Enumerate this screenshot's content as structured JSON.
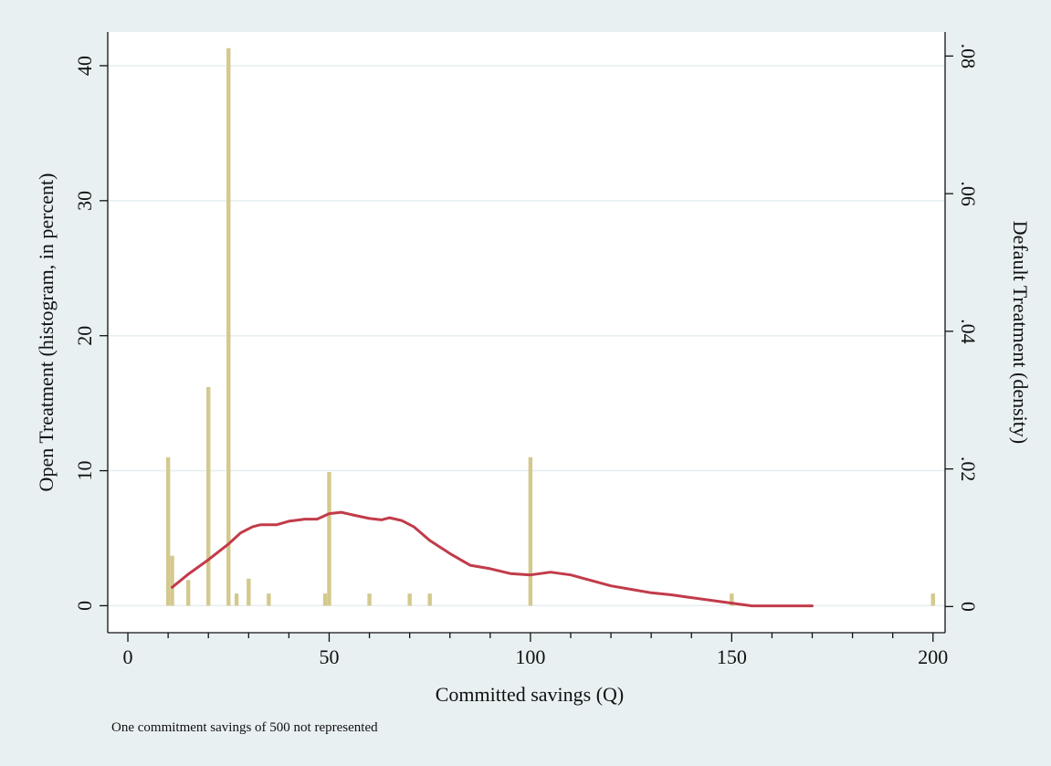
{
  "chart_data": {
    "type": "bar",
    "title": "",
    "xlabel": "Committed savings (Q)",
    "ylabel_left": "Open Treatment (histogram, in percent)",
    "ylabel_right": "Default Treatment (density)",
    "note": "One commitment savings of 500 not represented",
    "xlim": [
      -5,
      203
    ],
    "ylim_left": [
      -2,
      42.5
    ],
    "ylim_right": [
      -0.0038,
      0.0835
    ],
    "x_ticks": [
      0,
      50,
      100,
      150,
      200
    ],
    "x_tick_labels": [
      "0",
      "50",
      "100",
      "150",
      "200"
    ],
    "y_left_ticks": [
      0,
      10,
      20,
      30,
      40
    ],
    "y_left_tick_labels": [
      "0",
      "10",
      "20",
      "30",
      "40"
    ],
    "y_right_ticks": [
      0,
      0.02,
      0.04,
      0.06,
      0.08
    ],
    "y_right_tick_labels": [
      "0",
      ".02",
      ".04",
      ".06",
      ".08"
    ],
    "grid": true,
    "bar_width": 1,
    "series": [
      {
        "name": "Open Treatment (histogram, in percent)",
        "type": "bar",
        "axis": "left",
        "color": "#d4c98e",
        "x": [
          10,
          11,
          15,
          20,
          25,
          27,
          30,
          35,
          49,
          50,
          60,
          70,
          75,
          100,
          150,
          200
        ],
        "values": [
          11,
          3.7,
          1.9,
          16.2,
          41.3,
          0.9,
          2.0,
          0.9,
          0.9,
          9.9,
          0.9,
          0.9,
          0.9,
          11,
          0.9,
          0.9
        ]
      },
      {
        "name": "Default Treatment (density)",
        "type": "line",
        "axis": "right",
        "color": "#c23b4a",
        "x": [
          11,
          15,
          20,
          25,
          28,
          31,
          33,
          37,
          40,
          44,
          47,
          50,
          53,
          56,
          60,
          63,
          65,
          68,
          71,
          75,
          80,
          85,
          90,
          95,
          100,
          105,
          110,
          115,
          120,
          125,
          130,
          135,
          140,
          145,
          150,
          155,
          160,
          165,
          170
        ],
        "values": [
          0.0028,
          0.0047,
          0.0068,
          0.0091,
          0.0107,
          0.0116,
          0.0119,
          0.0119,
          0.0124,
          0.0127,
          0.0127,
          0.0135,
          0.0137,
          0.0133,
          0.0128,
          0.0126,
          0.0129,
          0.0125,
          0.0116,
          0.0096,
          0.0077,
          0.006,
          0.0055,
          0.0048,
          0.0046,
          0.005,
          0.0046,
          0.0038,
          0.003,
          0.0025,
          0.002,
          0.0017,
          0.0013,
          0.0009,
          0.0005,
          0.0001,
          0.0001,
          0.0001,
          0.0001
        ]
      }
    ]
  }
}
